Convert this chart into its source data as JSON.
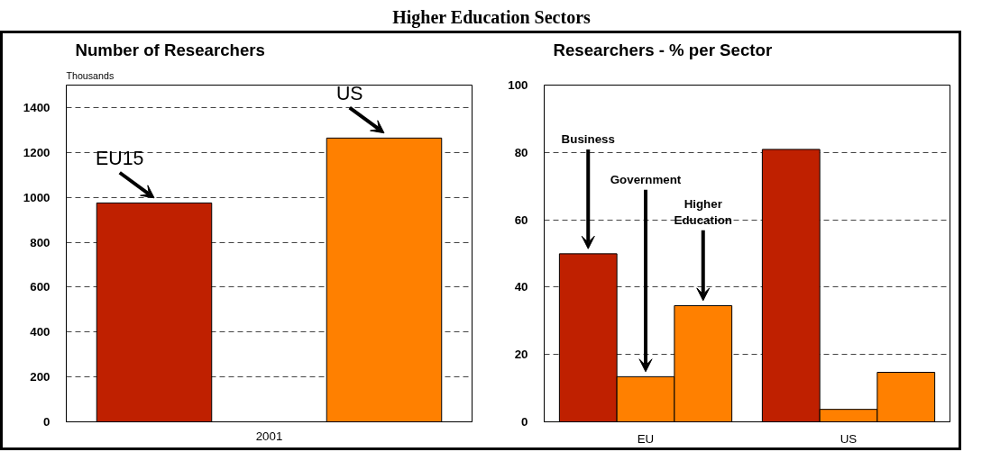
{
  "chart_data": [
    {
      "type": "bar",
      "title": "Number of Researchers",
      "ylabel": "Thousands",
      "annotations": [
        "Higher Education Sectors"
      ],
      "categories": [
        "2001"
      ],
      "series": [
        {
          "name": "EU15",
          "color": "#bf2000",
          "values": [
            975
          ]
        },
        {
          "name": "US",
          "color": "#ff8000",
          "values": [
            1264
          ]
        }
      ],
      "ylim": [
        0,
        1500
      ],
      "yticks": [
        0,
        200,
        400,
        600,
        800,
        1000,
        1200,
        1400
      ],
      "grid": "y"
    },
    {
      "type": "bar",
      "title": "Researchers - % per Sector",
      "categories": [
        "EU",
        "US"
      ],
      "series": [
        {
          "name": "Business",
          "color": "#bf2000",
          "values": [
            49.9,
            80.9
          ]
        },
        {
          "name": "Government",
          "color": "#ff8000",
          "values": [
            13.4,
            3.7
          ]
        },
        {
          "name": "Higher Education",
          "color": "#ff8000",
          "values": [
            34.5,
            14.7
          ]
        }
      ],
      "ylim": [
        0,
        100
      ],
      "yticks": [
        0,
        20,
        40,
        60,
        80,
        100
      ],
      "grid": "y"
    }
  ]
}
